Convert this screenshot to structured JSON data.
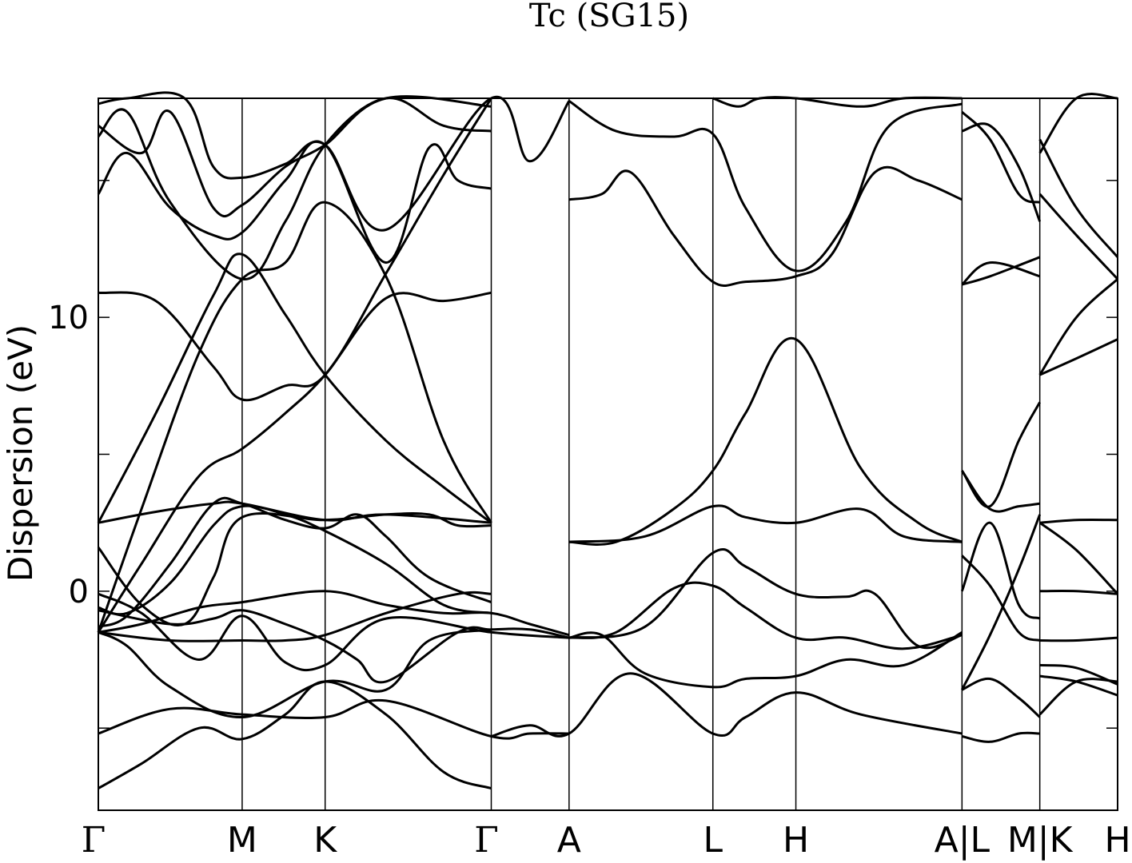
{
  "chart_data": {
    "type": "line",
    "title": "Tc (SG15)",
    "xlabel": "",
    "ylabel": "Dispersion (eV)",
    "ylim": [
      -8,
      18
    ],
    "yticks_labeled": [
      0,
      10
    ],
    "yticks_minor": [
      -5,
      5,
      15
    ],
    "grid": false,
    "legend": "none",
    "color": "#000000",
    "kpoints": [
      {
        "label": "Γ",
        "pos": 0.0
      },
      {
        "label": "M",
        "pos": 1.0
      },
      {
        "label": "K",
        "pos": 1.577
      },
      {
        "label": "Γ",
        "pos": 2.732
      },
      {
        "label": "A",
        "pos": 3.273
      },
      {
        "label": "L",
        "pos": 4.273
      },
      {
        "label": "H",
        "pos": 4.85
      },
      {
        "label": "A|L",
        "pos": 6.005
      },
      {
        "label": "M|K",
        "pos": 6.546
      },
      {
        "label": "H",
        "pos": 7.087
      }
    ],
    "series": [
      {
        "x": [
          0,
          0.3,
          0.7,
          1.0,
          1.3,
          1.577,
          2.0,
          2.4,
          2.732
        ],
        "y": [
          -7.2,
          -6.3,
          -5.0,
          -5.4,
          -4.5,
          -3.3,
          -4.5,
          -6.6,
          -7.2
        ]
      },
      {
        "x": [
          0,
          0.5,
          1.0,
          1.577,
          2.0,
          2.732,
          3.0,
          3.273
        ],
        "y": [
          -5.2,
          -4.3,
          -4.5,
          -4.6,
          -4.0,
          -5.3,
          -5.2,
          -5.2
        ]
      },
      {
        "x": [
          0,
          0.2,
          0.5,
          1.0,
          1.577,
          2.0,
          2.3,
          2.732
        ],
        "y": [
          -1.5,
          -2.0,
          -3.5,
          -4.6,
          -3.3,
          -3.6,
          -1.8,
          -1.4
        ]
      },
      {
        "x": [
          0,
          0.3,
          0.7,
          1.0,
          1.3,
          1.577,
          2.0,
          2.732,
          3.273
        ],
        "y": [
          -0.1,
          -0.8,
          -2.5,
          -0.9,
          -2.6,
          -2.7,
          -1.0,
          -1.5,
          -1.7
        ]
      },
      {
        "x": [
          0,
          0.3,
          0.7,
          1.0,
          1.577,
          2.0,
          2.4,
          2.732,
          3.0,
          3.273
        ],
        "y": [
          -1.5,
          -1.2,
          -0.6,
          -0.4,
          0.0,
          -0.5,
          -0.8,
          -0.8,
          -1.2,
          -1.6
        ]
      },
      {
        "x": [
          0,
          0.5,
          1.0,
          1.3,
          1.577,
          2.0,
          2.5,
          2.732
        ],
        "y": [
          -1.5,
          -1.8,
          -1.8,
          -1.8,
          -1.6,
          -0.8,
          -0.1,
          -0.1
        ]
      },
      {
        "x": [
          0,
          0.5,
          0.8,
          1.0,
          1.3,
          1.577,
          1.8,
          2.0,
          2.5,
          2.732,
          3.0,
          3.273
        ],
        "y": [
          -0.7,
          -1.2,
          -1.0,
          -0.7,
          -1.2,
          -1.8,
          -2.5,
          -3.3,
          -1.5,
          -1.4,
          -1.4,
          -1.7
        ]
      },
      {
        "x": [
          0,
          0.2,
          0.5,
          0.8,
          1.0,
          1.3,
          1.577,
          2.0,
          2.4,
          2.732
        ],
        "y": [
          -0.6,
          -0.8,
          0.3,
          2.4,
          3.1,
          2.8,
          2.2,
          1.0,
          -0.5,
          -0.8
        ]
      },
      {
        "x": [
          0,
          0.3,
          0.6,
          0.8,
          1.0,
          1.577,
          2.0,
          2.3,
          2.5,
          2.732
        ],
        "y": [
          1.6,
          -0.5,
          -1.2,
          0.5,
          2.7,
          2.6,
          2.8,
          2.8,
          2.4,
          2.4
        ]
      },
      {
        "x": [
          0,
          0.2,
          0.5,
          0.8,
          1.0,
          1.3,
          1.577,
          1.8,
          2.0,
          2.3,
          2.732
        ],
        "y": [
          -1.3,
          -0.9,
          1.0,
          3.2,
          3.2,
          2.6,
          2.3,
          2.8,
          2.0,
          0.5,
          -0.4
        ]
      },
      {
        "x": [
          0,
          0.4,
          0.8,
          1.0,
          1.577,
          2.0,
          2.732
        ],
        "y": [
          2.5,
          2.9,
          3.2,
          3.2,
          2.6,
          2.8,
          2.5
        ]
      },
      {
        "x": [
          0,
          0.3,
          0.7,
          1.0,
          1.3,
          1.577,
          2.0,
          2.4,
          2.732
        ],
        "y": [
          -1.5,
          1.0,
          4.2,
          5.2,
          6.5,
          7.9,
          10.7,
          10.6,
          10.9
        ]
      },
      {
        "x": [
          0,
          0.3,
          0.7,
          1.0,
          1.3,
          1.577,
          2.0,
          2.4,
          2.732
        ],
        "y": [
          -1.5,
          3.0,
          8.7,
          11.4,
          12.0,
          14.2,
          11.5,
          5.5,
          2.5
        ]
      },
      {
        "x": [
          0,
          0.4,
          0.8,
          1.0,
          1.3,
          1.577,
          2.0,
          2.4,
          2.732
        ],
        "y": [
          2.5,
          6.5,
          10.8,
          12.3,
          10.1,
          7.9,
          5.5,
          3.8,
          2.5
        ]
      },
      {
        "x": [
          0,
          0.4,
          0.8,
          1.0,
          1.3,
          1.577,
          2.0,
          2.4,
          2.732
        ],
        "y": [
          10.9,
          10.6,
          8.2,
          7.0,
          7.5,
          7.9,
          11.6,
          15.2,
          18.0
        ]
      },
      {
        "x": [
          0,
          0.2,
          0.5,
          0.8,
          1.0,
          1.3,
          1.577,
          2.0,
          2.3,
          2.5,
          2.732
        ],
        "y": [
          14.5,
          16.0,
          14.0,
          13.0,
          13.1,
          15.0,
          16.3,
          12.0,
          16.2,
          15.0,
          14.7
        ]
      },
      {
        "x": [
          0,
          0.2,
          0.5,
          1.0,
          1.3,
          1.577,
          2.0,
          2.4,
          2.732
        ],
        "y": [
          16.6,
          17.5,
          14.2,
          11.4,
          13.5,
          16.3,
          18.0,
          17.0,
          16.8
        ]
      },
      {
        "x": [
          0,
          0.3,
          0.5,
          0.8,
          1.0,
          1.3,
          1.577,
          2.0,
          2.732
        ],
        "y": [
          17.0,
          16.0,
          17.5,
          14.0,
          14.1,
          15.5,
          16.3,
          18.0,
          17.7
        ]
      },
      {
        "x": [
          0,
          0.2,
          0.6,
          0.8,
          1.0,
          1.3,
          1.577,
          2.0,
          2.732,
          3.0,
          3.273
        ],
        "y": [
          17.8,
          18.0,
          18.0,
          15.5,
          15.1,
          15.6,
          16.3,
          13.2,
          18.0,
          15.7,
          17.9
        ]
      },
      {
        "x": [
          2.732,
          3.0,
          3.273,
          3.7,
          4.273,
          4.5,
          4.85,
          5.3,
          6.005
        ],
        "y": [
          -5.3,
          -4.9,
          -5.2,
          -3.0,
          -5.2,
          -4.6,
          -3.7,
          -4.5,
          -5.2
        ]
      },
      {
        "x": [
          3.273,
          3.5,
          3.8,
          4.273,
          4.5,
          4.85,
          5.2,
          5.6,
          6.005
        ],
        "y": [
          -1.7,
          -1.6,
          -3.0,
          -3.5,
          -3.2,
          -3.1,
          -2.5,
          -2.7,
          -1.5
        ]
      },
      {
        "x": [
          3.273,
          3.6,
          4.0,
          4.273,
          4.5,
          4.85,
          5.2,
          5.6,
          6.005
        ],
        "y": [
          -1.7,
          -1.5,
          0.1,
          0.2,
          -0.6,
          -1.7,
          -1.7,
          -2.1,
          -1.6
        ]
      },
      {
        "x": [
          3.273,
          3.8,
          4.273,
          4.5,
          4.85,
          5.2,
          5.4,
          5.7,
          6.005
        ],
        "y": [
          -1.7,
          -1.3,
          1.4,
          0.9,
          -0.1,
          -0.2,
          -0.1,
          -2.0,
          -1.6
        ]
      },
      {
        "x": [
          3.273,
          3.6,
          4.0,
          4.273,
          4.5,
          4.85,
          5.3,
          5.7,
          6.005
        ],
        "y": [
          1.8,
          1.8,
          3.0,
          4.4,
          6.5,
          9.2,
          4.5,
          2.5,
          1.8
        ]
      },
      {
        "x": [
          3.273,
          3.8,
          4.273,
          4.5,
          4.85,
          5.3,
          5.6,
          6.005
        ],
        "y": [
          1.8,
          2.0,
          3.1,
          2.7,
          2.5,
          3.0,
          2.0,
          1.8
        ]
      },
      {
        "x": [
          3.273,
          3.5,
          3.7,
          4.0,
          4.273,
          4.5,
          4.85,
          5.1,
          5.4,
          5.7,
          6.005
        ],
        "y": [
          14.3,
          14.5,
          15.3,
          13.0,
          11.3,
          11.3,
          11.5,
          12.3,
          15.3,
          15.0,
          14.3
        ]
      },
      {
        "x": [
          3.273,
          3.6,
          4.0,
          4.273,
          4.5,
          4.85,
          5.2,
          5.5,
          6.005
        ],
        "y": [
          17.9,
          16.8,
          16.6,
          16.7,
          14.0,
          11.7,
          13.5,
          17.0,
          17.8
        ]
      },
      {
        "x": [
          4.273,
          4.45,
          4.6,
          4.85,
          5.3,
          5.6,
          6.005
        ],
        "y": [
          18.0,
          17.7,
          18.0,
          18.0,
          17.7,
          18.0,
          18.0
        ]
      },
      {
        "x": [
          6.005,
          6.2,
          6.4,
          6.546
        ],
        "y": [
          -5.3,
          -5.5,
          -5.2,
          -5.2
        ]
      },
      {
        "x": [
          6.005,
          6.2,
          6.4,
          6.546
        ],
        "y": [
          -3.6,
          -3.2,
          -3.9,
          -4.6
        ]
      },
      {
        "x": [
          6.005,
          6.2,
          6.4,
          6.546
        ],
        "y": [
          -3.6,
          -1.6,
          0.8,
          2.8
        ]
      },
      {
        "x": [
          6.005,
          6.2,
          6.4,
          6.546
        ],
        "y": [
          0.0,
          2.5,
          -0.5,
          -1.0
        ]
      },
      {
        "x": [
          6.005,
          6.2,
          6.4,
          6.546
        ],
        "y": [
          1.3,
          0.2,
          -1.5,
          -1.8
        ]
      },
      {
        "x": [
          6.005,
          6.2,
          6.4,
          6.546
        ],
        "y": [
          4.4,
          3.0,
          3.1,
          3.2
        ]
      },
      {
        "x": [
          6.005,
          6.2,
          6.4,
          6.546
        ],
        "y": [
          4.4,
          3.1,
          5.5,
          6.9
        ]
      },
      {
        "x": [
          6.005,
          6.2,
          6.546
        ],
        "y": [
          11.2,
          11.5,
          12.2
        ]
      },
      {
        "x": [
          6.005,
          6.2,
          6.546
        ],
        "y": [
          11.2,
          12.0,
          11.5
        ]
      },
      {
        "x": [
          6.005,
          6.2,
          6.4,
          6.546
        ],
        "y": [
          16.8,
          17.0,
          15.5,
          13.5
        ]
      },
      {
        "x": [
          6.005,
          6.2,
          6.4,
          6.546
        ],
        "y": [
          17.5,
          16.5,
          14.5,
          14.2
        ]
      },
      {
        "x": [
          6.546,
          6.8,
          7.087
        ],
        "y": [
          -4.5,
          -3.3,
          -3.3
        ]
      },
      {
        "x": [
          6.546,
          6.8,
          7.087
        ],
        "y": [
          -2.7,
          -2.8,
          -3.4
        ]
      },
      {
        "x": [
          6.546,
          6.8,
          7.087
        ],
        "y": [
          -3.1,
          -3.3,
          -3.8
        ]
      },
      {
        "x": [
          6.546,
          6.8,
          7.087
        ],
        "y": [
          -1.8,
          -1.8,
          -1.7
        ]
      },
      {
        "x": [
          6.546,
          6.8,
          7.087
        ],
        "y": [
          0.0,
          0.0,
          -0.1
        ]
      },
      {
        "x": [
          6.546,
          6.8,
          7.087
        ],
        "y": [
          2.5,
          1.5,
          -0.1
        ]
      },
      {
        "x": [
          6.546,
          6.8,
          7.087
        ],
        "y": [
          2.5,
          2.6,
          2.6
        ]
      },
      {
        "x": [
          6.546,
          6.8,
          7.087
        ],
        "y": [
          7.9,
          8.5,
          9.2
        ]
      },
      {
        "x": [
          6.546,
          6.8,
          7.087
        ],
        "y": [
          7.9,
          10.0,
          11.4
        ]
      },
      {
        "x": [
          6.546,
          6.8,
          7.087
        ],
        "y": [
          14.5,
          13.0,
          11.4
        ]
      },
      {
        "x": [
          6.546,
          6.8,
          7.087
        ],
        "y": [
          16.5,
          14.0,
          12.2
        ]
      },
      {
        "x": [
          6.546,
          6.8,
          7.087
        ],
        "y": [
          16.0,
          18.0,
          18.0
        ]
      }
    ]
  }
}
